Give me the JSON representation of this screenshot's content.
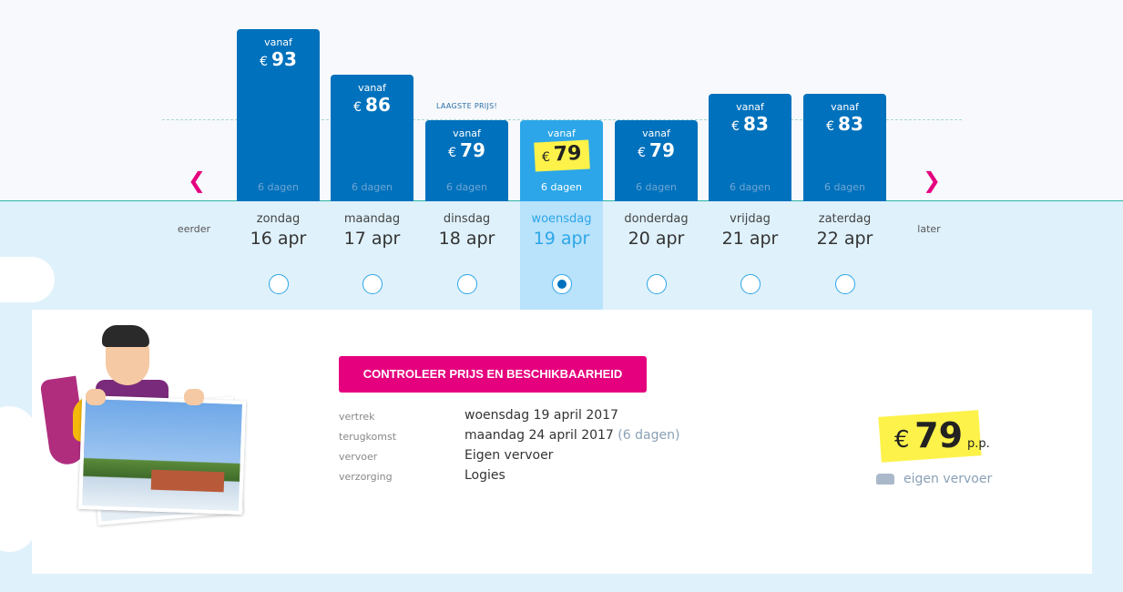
{
  "price_chart": {
    "lowest_label": "LAAGSTE PRIJS!",
    "currency": "€",
    "from_label": "vanaf",
    "days": [
      {
        "weekday": "zondag",
        "date": "16 apr",
        "price": "93",
        "duration": "6 dagen",
        "selected": false
      },
      {
        "weekday": "maandag",
        "date": "17 apr",
        "price": "86",
        "duration": "6 dagen",
        "selected": false
      },
      {
        "weekday": "dinsdag",
        "date": "18 apr",
        "price": "79",
        "duration": "6 dagen",
        "selected": false
      },
      {
        "weekday": "woensdag",
        "date": "19 apr",
        "price": "79",
        "duration": "6 dagen",
        "selected": true
      },
      {
        "weekday": "donderdag",
        "date": "20 apr",
        "price": "79",
        "duration": "6 dagen",
        "selected": false
      },
      {
        "weekday": "vrijdag",
        "date": "21 apr",
        "price": "83",
        "duration": "6 dagen",
        "selected": false
      },
      {
        "weekday": "zaterdag",
        "date": "22 apr",
        "price": "83",
        "duration": "6 dagen",
        "selected": false
      }
    ],
    "nav": {
      "earlier": "eerder",
      "later": "later"
    }
  },
  "offer": {
    "cta_label": "CONTROLEER PRIJS EN BESCHIKBAARHEID",
    "details": [
      {
        "label": "vertrek",
        "value": "woensdag 19 april 2017",
        "extra": ""
      },
      {
        "label": "terugkomst",
        "value": "maandag 24 april 2017",
        "extra": "(6 dagen)"
      },
      {
        "label": "vervoer",
        "value": "Eigen vervoer",
        "extra": ""
      },
      {
        "label": "verzorging",
        "value": "Logies",
        "extra": ""
      }
    ],
    "price": {
      "currency": "€",
      "amount": "79",
      "suffix": "p.p."
    },
    "transport_label": "eigen vervoer"
  },
  "colors": {
    "bar": "#0071bc",
    "bar_selected": "#2ca6e8",
    "accent_pink": "#e5007e",
    "highlight_yellow": "#fdf24a",
    "background_light_blue": "#dff1fb"
  },
  "icons": [
    "chevron-left-icon",
    "chevron-right-icon",
    "car-icon"
  ]
}
